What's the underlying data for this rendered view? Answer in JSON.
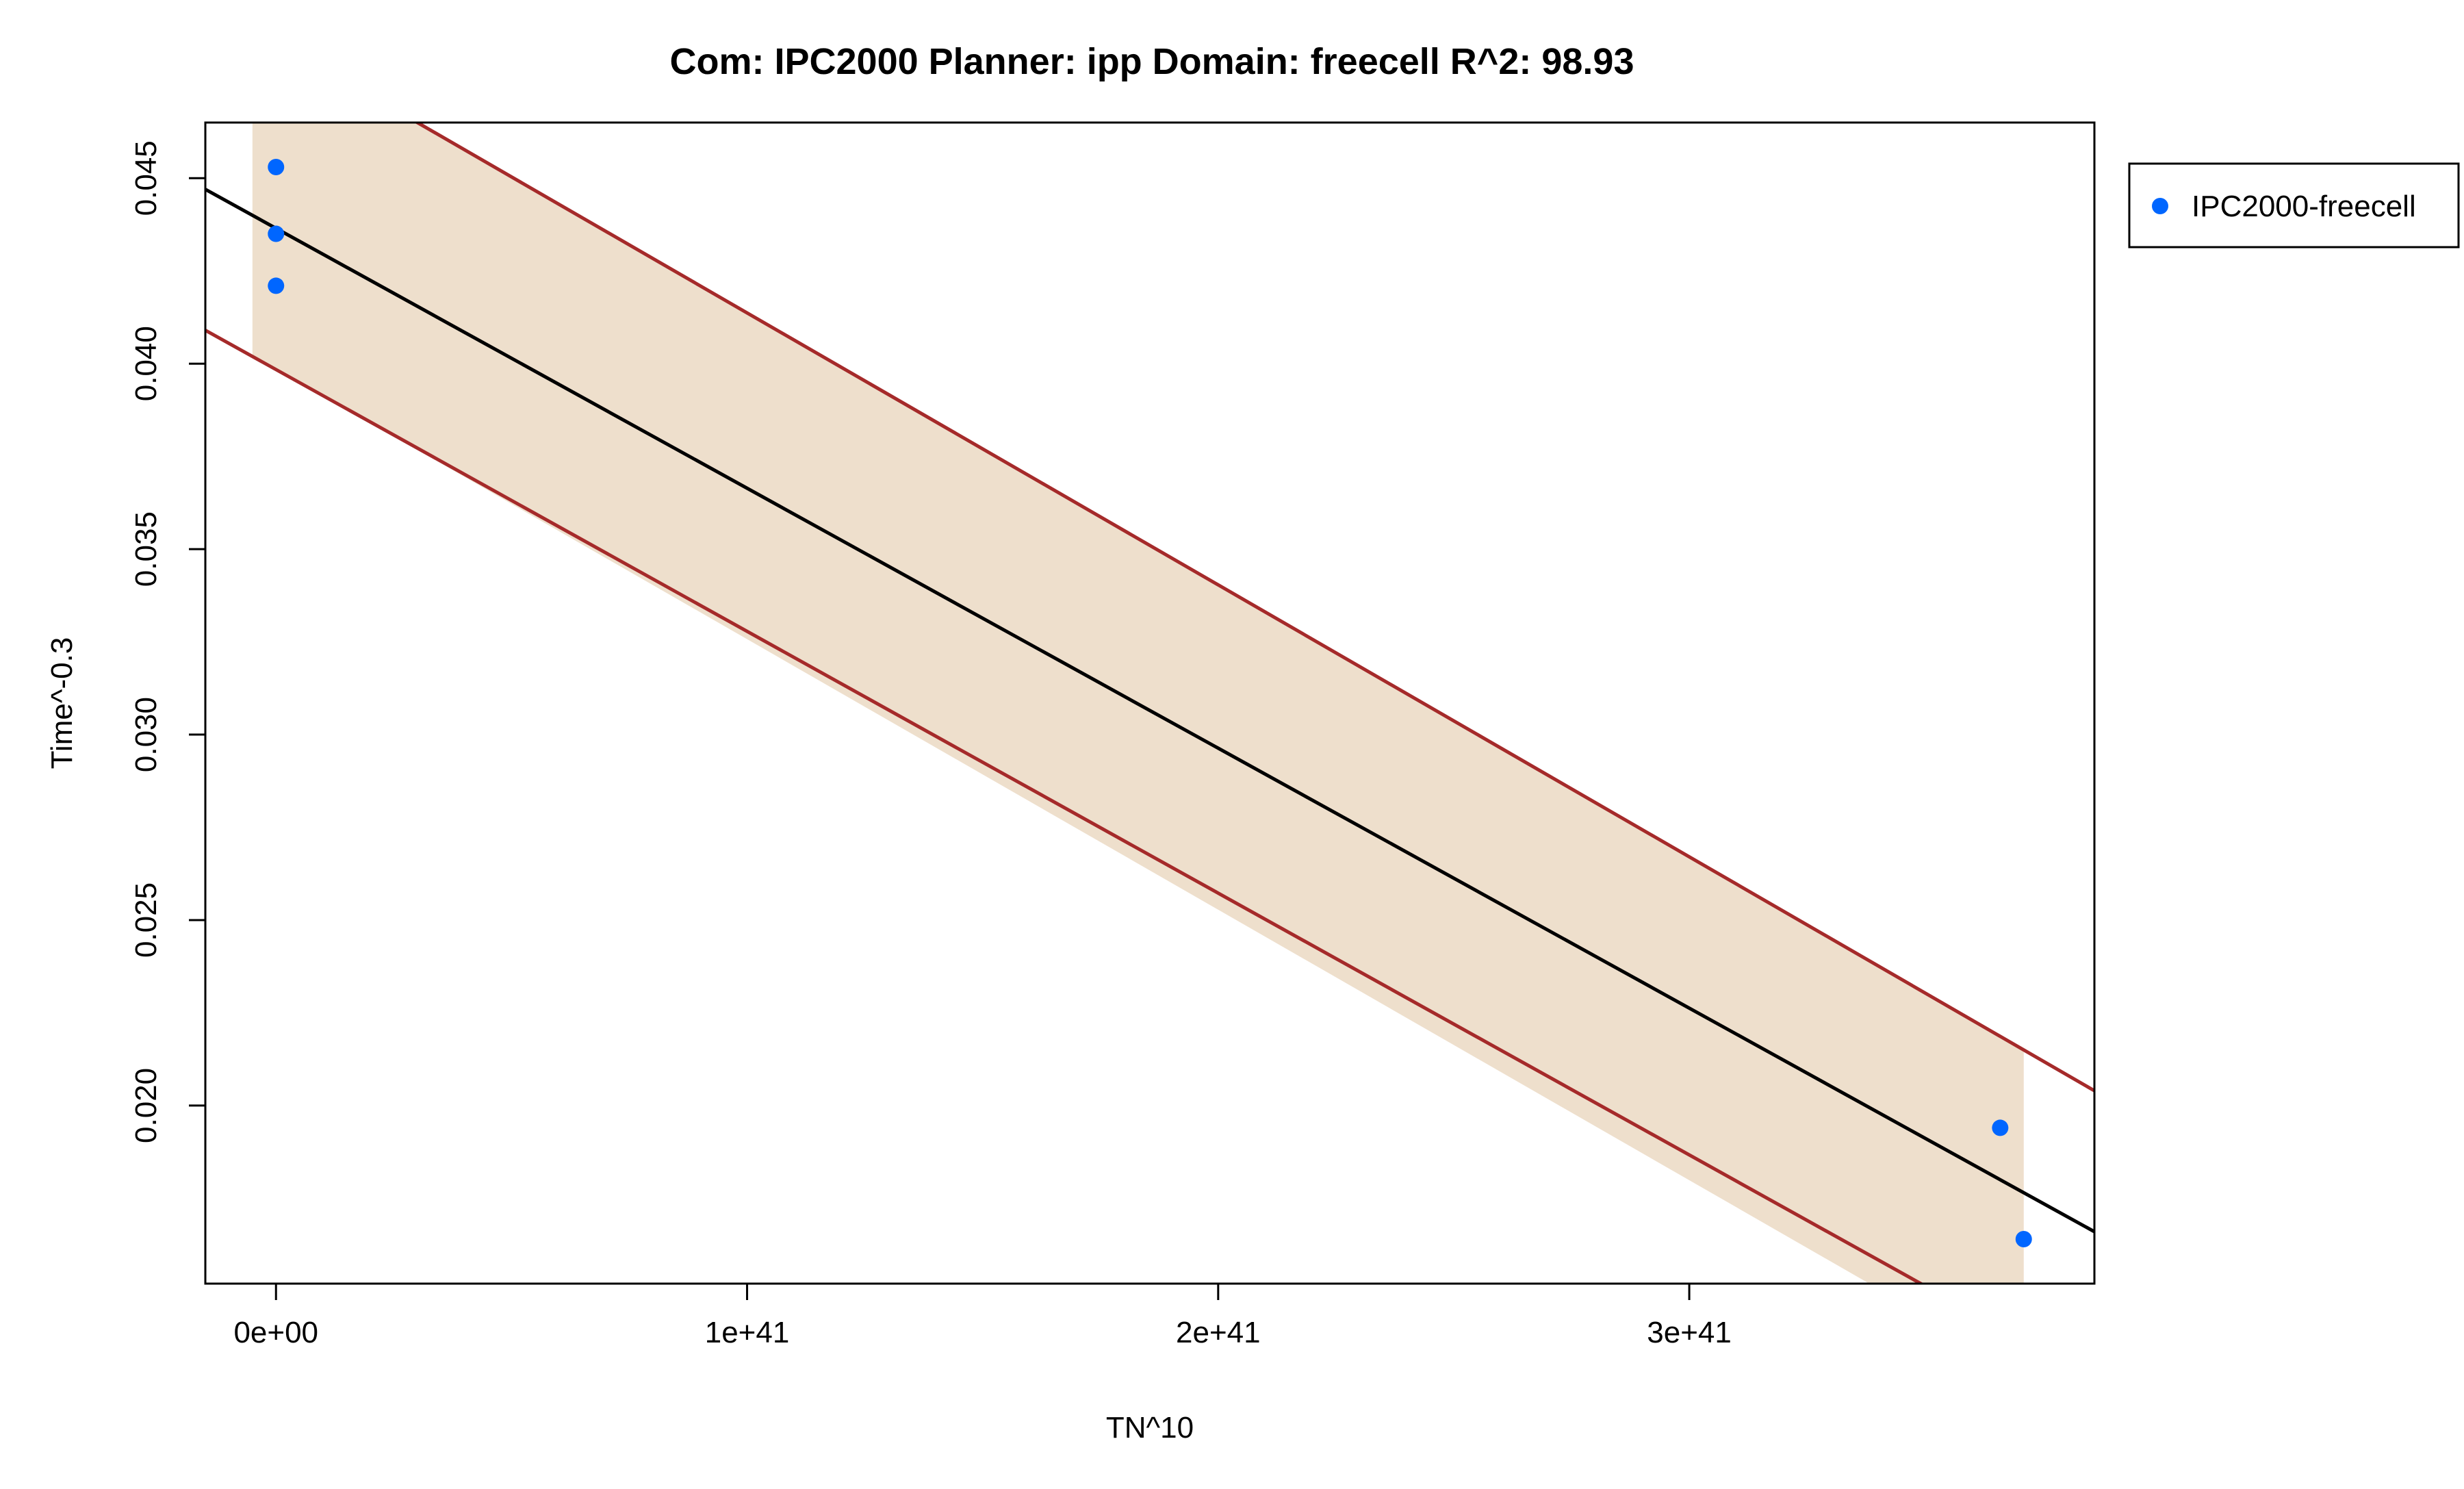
{
  "chart_data": {
    "type": "scatter",
    "title": "Com: IPC2000 Planner: ipp Domain: freecell R^2: 98.93",
    "xlabel": "TN^10",
    "ylabel": "Time^-0.3",
    "x_tick_labels": [
      "0e+00",
      "1e+41",
      "2e+41",
      "3e+41"
    ],
    "x_ticks": [
      0,
      1e+41,
      2e+41,
      3e+41
    ],
    "y_tick_labels": [
      "0.020",
      "0.025",
      "0.030",
      "0.035",
      "0.040",
      "0.045"
    ],
    "y_ticks": [
      0.02,
      0.025,
      0.03,
      0.035,
      0.04,
      0.045
    ],
    "xlim": [
      -1.5e+40,
      3.86e+41
    ],
    "ylim": [
      0.0152,
      0.0465
    ],
    "series": [
      {
        "name": "IPC2000-freecell",
        "color": "#0066ff",
        "x": [
          0,
          0,
          0,
          3.66e+41,
          3.71e+41
        ],
        "y": [
          0.0453,
          0.0435,
          0.0421,
          0.0194,
          0.0164
        ]
      }
    ],
    "fit": {
      "color": "#000000",
      "x": [
        -1.5e+40,
        3.86e+41
      ],
      "y": [
        0.0447,
        0.0166
      ]
    },
    "bounds": {
      "color": "#a52a2a",
      "upper": {
        "x": [
          -1.5e+40,
          3.86e+41
        ],
        "y": [
          0.0498,
          0.0204
        ]
      },
      "lower": {
        "x": [
          -1.5e+40,
          3.86e+41
        ],
        "y": [
          0.0409,
          0.0126
        ]
      }
    },
    "band": {
      "color": "#eedfcc",
      "x": [
        -5e+39,
        3.71e+41
      ],
      "upper_y": [
        0.04903,
        0.02147
      ],
      "lower_y": [
        0.04023,
        0.01281
      ]
    },
    "legend": {
      "position": "top-right-outside"
    },
    "grid": false
  }
}
